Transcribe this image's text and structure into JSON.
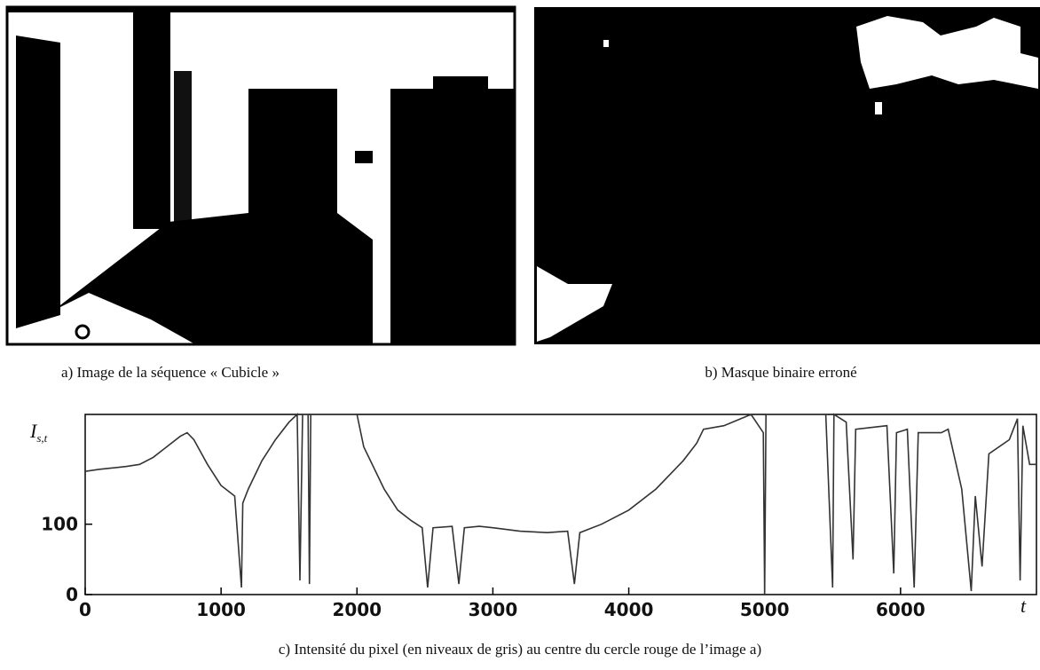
{
  "panels": [
    {
      "caption": "a) Image de la séquence « Cubicle »"
    },
    {
      "caption": "b) Masque binaire erroné"
    }
  ],
  "chart_data": {
    "type": "line",
    "caption": "c) Intensité du pixel (en niveaux de gris) au centre du cercle rouge de l’image a)",
    "y_label": "I",
    "y_label_sub": "s,t",
    "x_label": "t",
    "xlim": [
      0,
      7000
    ],
    "ylim": [
      0,
      256
    ],
    "xticks": [
      0,
      1000,
      2000,
      3000,
      4000,
      5000,
      6000
    ],
    "yticks": [
      0,
      100
    ],
    "series": [
      {
        "color": "#333333",
        "x": [
          0,
          100,
          200,
          300,
          400,
          500,
          600,
          700,
          750,
          800,
          900,
          1000,
          1100,
          1150,
          1160,
          1200,
          1300,
          1400,
          1500,
          1560,
          1580,
          1600,
          1640,
          1650,
          1660,
          2000,
          2050,
          2200,
          2300,
          2400,
          2480,
          2520,
          2560,
          2700,
          2750,
          2790,
          2900,
          3000,
          3200,
          3400,
          3550,
          3600,
          3640,
          3800,
          4000,
          4200,
          4400,
          4500,
          4550,
          4700,
          4900,
          4990,
          5000,
          5010,
          5450,
          5500,
          5510,
          5600,
          5650,
          5670,
          5900,
          5950,
          5970,
          6050,
          6100,
          6130,
          6300,
          6350,
          6450,
          6520,
          6550,
          6600,
          6650,
          6800,
          6860,
          6880,
          6900,
          6950,
          7000
        ],
        "values": [
          175,
          178,
          180,
          182,
          185,
          195,
          210,
          225,
          230,
          220,
          185,
          155,
          140,
          10,
          130,
          150,
          190,
          220,
          245,
          256,
          20,
          256,
          256,
          15,
          256,
          256,
          210,
          150,
          120,
          105,
          95,
          10,
          95,
          97,
          15,
          95,
          97,
          95,
          90,
          88,
          90,
          15,
          88,
          100,
          120,
          150,
          190,
          215,
          235,
          240,
          256,
          230,
          0,
          256,
          256,
          10,
          256,
          245,
          50,
          235,
          240,
          30,
          230,
          235,
          10,
          230,
          230,
          235,
          150,
          5,
          140,
          40,
          200,
          220,
          250,
          20,
          240,
          185,
          185
        ]
      }
    ]
  }
}
